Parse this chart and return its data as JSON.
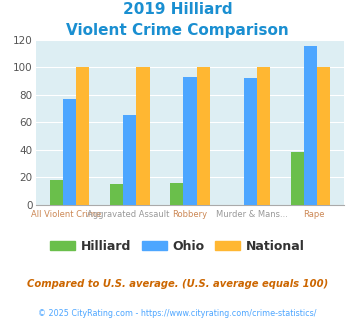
{
  "title_line1": "2019 Hilliard",
  "title_line2": "Violent Crime Comparison",
  "categories": [
    "All Violent Crime",
    "Aggravated Assault",
    "Robbery",
    "Murder & Mans...",
    "Rape"
  ],
  "cat_line1": [
    "",
    "Aggravated Assault",
    "",
    "Murder & Mans...",
    ""
  ],
  "cat_line2": [
    "All Violent Crime",
    "",
    "Robbery",
    "",
    "Rape"
  ],
  "hilliard": [
    18,
    15,
    16,
    0,
    38
  ],
  "ohio": [
    77,
    65,
    93,
    92,
    115
  ],
  "national": [
    100,
    100,
    100,
    100,
    100
  ],
  "hilliard_color": "#6abf4b",
  "ohio_color": "#4da6ff",
  "national_color": "#ffb732",
  "ylim": [
    0,
    120
  ],
  "yticks": [
    0,
    20,
    40,
    60,
    80,
    100,
    120
  ],
  "plot_bg": "#ddeef3",
  "legend_labels": [
    "Hilliard",
    "Ohio",
    "National"
  ],
  "footnote1": "Compared to U.S. average. (U.S. average equals 100)",
  "footnote2": "© 2025 CityRating.com - https://www.cityrating.com/crime-statistics/",
  "title_color": "#1a8fd1",
  "footnote1_color": "#cc6600",
  "footnote2_color": "#4da6ff",
  "cat_top_color": "#999999",
  "cat_bot_color": "#cc8855"
}
